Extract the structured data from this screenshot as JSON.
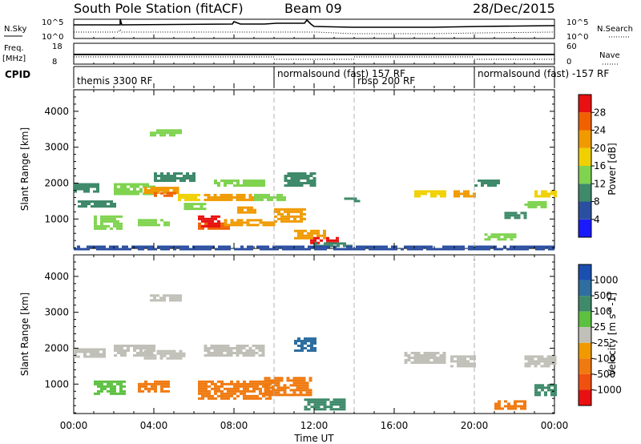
{
  "header": {
    "station": "South Pole Station (fitACF)",
    "beam": "Beam 09",
    "date": "28/Dec/2015"
  },
  "aux_panels": {
    "nsky_label": "N.Sky",
    "nsky_top": "10^5",
    "nsky_bottom": "10^0",
    "nsearch_label": "N.Search",
    "nsearch_top": "10^5",
    "nsearch_bottom": "10^0",
    "freq_label": "Freq.",
    "freq_unit": "[MHz]",
    "freq_top": "18",
    "freq_bottom": "8",
    "nave_label": "Nave",
    "nave_top": "60",
    "nave_bottom": "0",
    "cpid_label": "CPID"
  },
  "modes": [
    {
      "label": "themis 3300 RF",
      "start_hour": 0
    },
    {
      "label": "normalsound (fast) 157 RF",
      "start_hour": 10
    },
    {
      "label": "rbsp 200 RF",
      "start_hour": 14
    },
    {
      "label": "normalsound (fast) -157 RF",
      "start_hour": 20
    }
  ],
  "axes": {
    "ylabel": "Slant Range [km]",
    "xlabel": "Time UT",
    "xticks": [
      "00:00",
      "04:00",
      "08:00",
      "12:00",
      "16:00",
      "20:00",
      "00:00"
    ],
    "yticks": [
      "1000",
      "2000",
      "3000",
      "4000"
    ]
  },
  "colorbars": {
    "power_title": "Power [dB]",
    "power_ticks": [
      "4",
      "8",
      "12",
      "16",
      "20",
      "24",
      "28"
    ],
    "power_colors": [
      "#1a1aff",
      "#2b4fa0",
      "#3e8a6a",
      "#7fd34f",
      "#f0d000",
      "#f09a00",
      "#f06000",
      "#e81010"
    ],
    "velocity_title": "Velocity [m s^-1]",
    "velocity_ticks": [
      "1000",
      "500",
      "100",
      "25",
      "-25",
      "-100",
      "-500",
      "-1000"
    ],
    "velocity_colors": [
      "#1a4fb0",
      "#2e6ea0",
      "#3e8a6a",
      "#5cc040",
      "#c0c0b8",
      "#f09a00",
      "#f07a10",
      "#f05010",
      "#e81010"
    ]
  },
  "chart_data": [
    {
      "type": "heatmap",
      "title": "Power [dB]",
      "xlabel": "Time UT",
      "ylabel": "Slant Range [km]",
      "xlim": [
        0,
        24
      ],
      "ylim": [
        180,
        4600
      ],
      "zlim": [
        0,
        30
      ],
      "regions": [
        {
          "t": [
            0.0,
            1.2
          ],
          "range": [
            1750,
            2000
          ],
          "value": 10
        },
        {
          "t": [
            0.2,
            2.0
          ],
          "range": [
            1380,
            1520
          ],
          "value": 8
        },
        {
          "t": [
            1.0,
            2.4
          ],
          "range": [
            700,
            1100
          ],
          "value": 12
        },
        {
          "t": [
            2.0,
            4.0
          ],
          "range": [
            1700,
            2000
          ],
          "value": 14
        },
        {
          "t": [
            3.8,
            5.4
          ],
          "range": [
            3300,
            3500
          ],
          "value": 12
        },
        {
          "t": [
            3.5,
            5.2
          ],
          "range": [
            1700,
            1900
          ],
          "value": 20
        },
        {
          "t": [
            4.0,
            5.0
          ],
          "range": [
            1650,
            1750
          ],
          "value": 24
        },
        {
          "t": [
            4.0,
            6.0
          ],
          "range": [
            2050,
            2300
          ],
          "value": 10
        },
        {
          "t": [
            3.2,
            4.8
          ],
          "range": [
            800,
            1000
          ],
          "value": 12
        },
        {
          "t": [
            5.2,
            6.2
          ],
          "range": [
            1500,
            1700
          ],
          "value": 18
        },
        {
          "t": [
            5.5,
            6.5
          ],
          "range": [
            1300,
            1450
          ],
          "value": 14
        },
        {
          "t": [
            6.2,
            7.8
          ],
          "range": [
            700,
            900
          ],
          "value": 26
        },
        {
          "t": [
            6.2,
            7.2
          ],
          "range": [
            800,
            1100
          ],
          "value": 28
        },
        {
          "t": [
            6.5,
            9.0
          ],
          "range": [
            1550,
            1700
          ],
          "value": 20
        },
        {
          "t": [
            7.0,
            9.5
          ],
          "range": [
            1900,
            2100
          ],
          "value": 12
        },
        {
          "t": [
            7.5,
            10.0
          ],
          "range": [
            800,
            1000
          ],
          "value": 22
        },
        {
          "t": [
            8.0,
            9.0
          ],
          "range": [
            1200,
            1350
          ],
          "value": 20
        },
        {
          "t": [
            9.0,
            10.5
          ],
          "range": [
            1500,
            1700
          ],
          "value": 14
        },
        {
          "t": [
            10.0,
            11.5
          ],
          "range": [
            900,
            1300
          ],
          "value": 22
        },
        {
          "t": [
            10.5,
            12.0
          ],
          "range": [
            1900,
            2300
          ],
          "value": 10
        },
        {
          "t": [
            11.0,
            12.5
          ],
          "range": [
            480,
            700
          ],
          "value": 20
        },
        {
          "t": [
            11.8,
            13.2
          ],
          "range": [
            350,
            500
          ],
          "value": 28
        },
        {
          "t": [
            12.0,
            13.8
          ],
          "range": [
            250,
            350
          ],
          "value": 8
        },
        {
          "t": [
            13.5,
            14.2
          ],
          "range": [
            1500,
            1600
          ],
          "value": 8
        },
        {
          "t": [
            17.0,
            18.5
          ],
          "range": [
            1600,
            1800
          ],
          "value": 18
        },
        {
          "t": [
            18.8,
            20.0
          ],
          "range": [
            1600,
            1800
          ],
          "value": 20
        },
        {
          "t": [
            20.0,
            21.2
          ],
          "range": [
            1900,
            2100
          ],
          "value": 10
        },
        {
          "t": [
            20.5,
            22.0
          ],
          "range": [
            400,
            600
          ],
          "value": 14
        },
        {
          "t": [
            21.5,
            22.5
          ],
          "range": [
            1000,
            1200
          ],
          "value": 10
        },
        {
          "t": [
            22.5,
            23.5
          ],
          "range": [
            1350,
            1500
          ],
          "value": 12
        },
        {
          "t": [
            23.0,
            24.0
          ],
          "range": [
            1600,
            1800
          ],
          "value": 16
        },
        {
          "t": [
            0.0,
            24.0
          ],
          "range": [
            180,
            260
          ],
          "value": 6
        }
      ]
    },
    {
      "type": "heatmap",
      "title": "Velocity [m s^-1]",
      "xlabel": "Time UT",
      "ylabel": "Slant Range [km]",
      "xlim": [
        0,
        24
      ],
      "ylim": [
        180,
        4600
      ],
      "zlim": [
        -1000,
        1000
      ],
      "regions": [
        {
          "t": [
            0.0,
            1.5
          ],
          "range": [
            1750,
            2000
          ],
          "value": 0
        },
        {
          "t": [
            1.0,
            2.5
          ],
          "range": [
            700,
            1100
          ],
          "value": 60
        },
        {
          "t": [
            2.0,
            4.0
          ],
          "range": [
            1800,
            2100
          ],
          "value": 0
        },
        {
          "t": [
            3.8,
            5.4
          ],
          "range": [
            3300,
            3500
          ],
          "value": 0
        },
        {
          "t": [
            3.5,
            5.5
          ],
          "range": [
            1700,
            1950
          ],
          "value": 0
        },
        {
          "t": [
            3.2,
            4.8
          ],
          "range": [
            800,
            1100
          ],
          "value": -300
        },
        {
          "t": [
            6.2,
            10.0
          ],
          "range": [
            600,
            1100
          ],
          "value": -300
        },
        {
          "t": [
            6.5,
            9.5
          ],
          "range": [
            1800,
            2100
          ],
          "value": 0
        },
        {
          "t": [
            9.5,
            11.8
          ],
          "range": [
            700,
            1200
          ],
          "value": -150
        },
        {
          "t": [
            11.0,
            12.0
          ],
          "range": [
            1900,
            2300
          ],
          "value": 700
        },
        {
          "t": [
            11.5,
            13.5
          ],
          "range": [
            280,
            600
          ],
          "value": 200
        },
        {
          "t": [
            16.5,
            18.5
          ],
          "range": [
            1600,
            1900
          ],
          "value": 0
        },
        {
          "t": [
            18.8,
            20.0
          ],
          "range": [
            1500,
            1800
          ],
          "value": 0
        },
        {
          "t": [
            21.0,
            22.5
          ],
          "range": [
            300,
            550
          ],
          "value": -300
        },
        {
          "t": [
            22.5,
            24.0
          ],
          "range": [
            1500,
            1800
          ],
          "value": 0
        },
        {
          "t": [
            23.0,
            24.0
          ],
          "range": [
            700,
            1000
          ],
          "value": 300
        }
      ]
    }
  ]
}
